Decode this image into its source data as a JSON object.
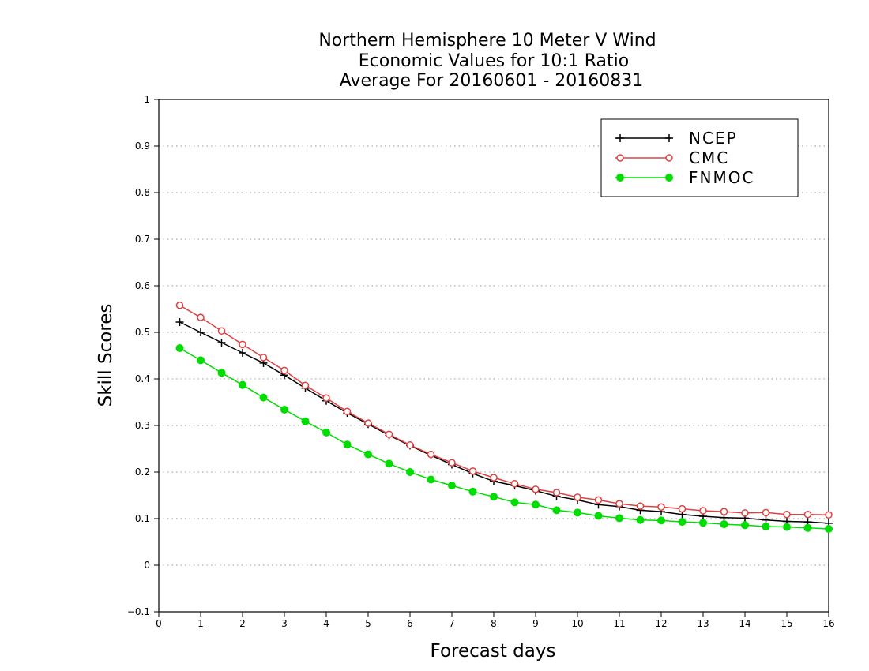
{
  "chart_data": {
    "type": "line",
    "title_lines": [
      "Northern Hemisphere 10 Meter V Wind",
      "Economic Values for 10:1 Ratio",
      "Average For 20160601 - 20160831"
    ],
    "xlabel": "Forecast days",
    "ylabel": "Skill Scores",
    "xlim": [
      0,
      16
    ],
    "ylim": [
      -0.1,
      1
    ],
    "x_ticks": [
      "0",
      "1",
      "2",
      "3",
      "4",
      "5",
      "6",
      "7",
      "8",
      "9",
      "10",
      "11",
      "12",
      "13",
      "14",
      "15",
      "16"
    ],
    "y_ticks": [
      "−0.1",
      "0",
      "0.1",
      "0.2",
      "0.3",
      "0.4",
      "0.5",
      "0.6",
      "0.7",
      "0.8",
      "0.9",
      "1"
    ],
    "grid": "horizontal dotted",
    "legend_position": "top-right",
    "x": [
      0.5,
      1,
      1.5,
      2,
      2.5,
      3,
      3.5,
      4,
      4.5,
      5,
      5.5,
      6,
      6.5,
      7,
      7.5,
      8,
      8.5,
      9,
      9.5,
      10,
      10.5,
      11,
      11.5,
      12,
      12.5,
      13,
      13.5,
      14,
      14.5,
      15,
      15.5,
      16
    ],
    "series": [
      {
        "name": "NCEP",
        "color": "#000000",
        "marker": "plus",
        "values": [
          0.522,
          0.5,
          0.478,
          0.456,
          0.434,
          0.408,
          0.38,
          0.353,
          0.327,
          0.303,
          0.279,
          0.257,
          0.236,
          0.216,
          0.197,
          0.18,
          0.171,
          0.16,
          0.148,
          0.14,
          0.13,
          0.126,
          0.118,
          0.115,
          0.109,
          0.105,
          0.102,
          0.101,
          0.097,
          0.094,
          0.093,
          0.09
        ]
      },
      {
        "name": "CMC",
        "color": "#e04040",
        "marker": "open-circle",
        "values": [
          0.558,
          0.532,
          0.503,
          0.474,
          0.446,
          0.418,
          0.386,
          0.359,
          0.33,
          0.305,
          0.281,
          0.258,
          0.238,
          0.22,
          0.202,
          0.188,
          0.175,
          0.163,
          0.156,
          0.146,
          0.14,
          0.132,
          0.127,
          0.125,
          0.121,
          0.117,
          0.115,
          0.112,
          0.113,
          0.109,
          0.109,
          0.108
        ]
      },
      {
        "name": "FNMOC",
        "color": "#00dd00",
        "marker": "filled-circle",
        "values": [
          0.466,
          0.44,
          0.413,
          0.387,
          0.36,
          0.334,
          0.309,
          0.285,
          0.259,
          0.238,
          0.218,
          0.2,
          0.184,
          0.171,
          0.158,
          0.147,
          0.135,
          0.13,
          0.118,
          0.113,
          0.106,
          0.101,
          0.097,
          0.096,
          0.093,
          0.091,
          0.088,
          0.086,
          0.083,
          0.082,
          0.08,
          0.078
        ]
      }
    ]
  }
}
